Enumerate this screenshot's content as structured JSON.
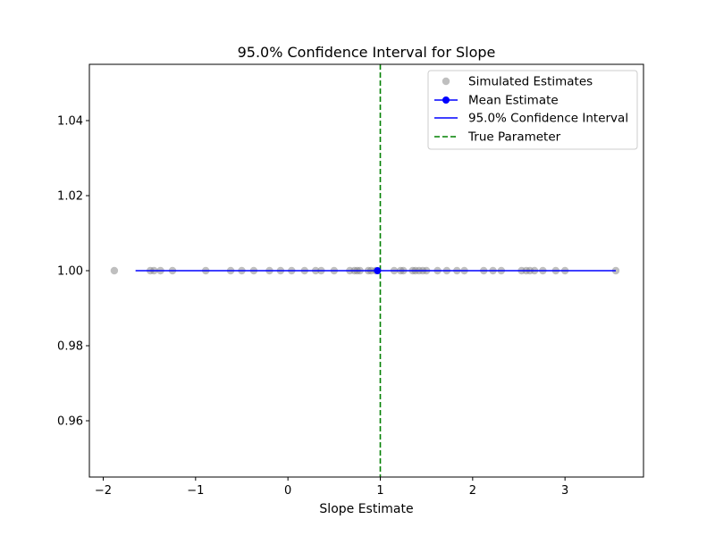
{
  "chart_data": {
    "type": "scatter",
    "title": "95.0% Confidence Interval for Slope",
    "xlabel": "Slope Estimate",
    "ylabel": "",
    "xlim": [
      -2.15,
      3.85
    ],
    "ylim": [
      0.945,
      1.055
    ],
    "xticks": [
      -2,
      -1,
      0,
      1,
      2,
      3
    ],
    "xtick_labels": [
      "−2",
      "−1",
      "0",
      "1",
      "2",
      "3"
    ],
    "yticks": [
      0.96,
      0.98,
      1.0,
      1.02,
      1.04
    ],
    "ytick_labels": [
      "0.96",
      "0.98",
      "1.00",
      "1.02",
      "1.04"
    ],
    "grid": false,
    "legend_position": "top-right",
    "series": [
      {
        "name": "Simulated Estimates",
        "kind": "scatter",
        "color": "#808080",
        "y": 1.0,
        "x": [
          -1.88,
          -1.49,
          -1.45,
          -1.38,
          -1.25,
          -0.89,
          -0.62,
          -0.5,
          -0.37,
          -0.2,
          -0.08,
          0.04,
          0.18,
          0.3,
          0.36,
          0.5,
          0.67,
          0.72,
          0.75,
          0.78,
          0.87,
          0.9,
          0.95,
          1.15,
          1.22,
          1.25,
          1.35,
          1.38,
          1.42,
          1.46,
          1.5,
          1.62,
          1.72,
          1.83,
          1.91,
          2.12,
          2.22,
          2.31,
          2.53,
          2.58,
          2.62,
          2.67,
          2.76,
          2.9,
          3.0,
          3.55
        ]
      },
      {
        "name": "Mean Estimate",
        "kind": "point",
        "color": "#0000ff",
        "x": 0.97,
        "y": 1.0
      },
      {
        "name": "95.0% Confidence Interval",
        "kind": "hline",
        "color": "#0000ff",
        "x": [
          -1.65,
          3.55
        ],
        "y": 1.0
      },
      {
        "name": "True Parameter",
        "kind": "vline",
        "color": "#008000",
        "x": 1.0
      }
    ]
  }
}
